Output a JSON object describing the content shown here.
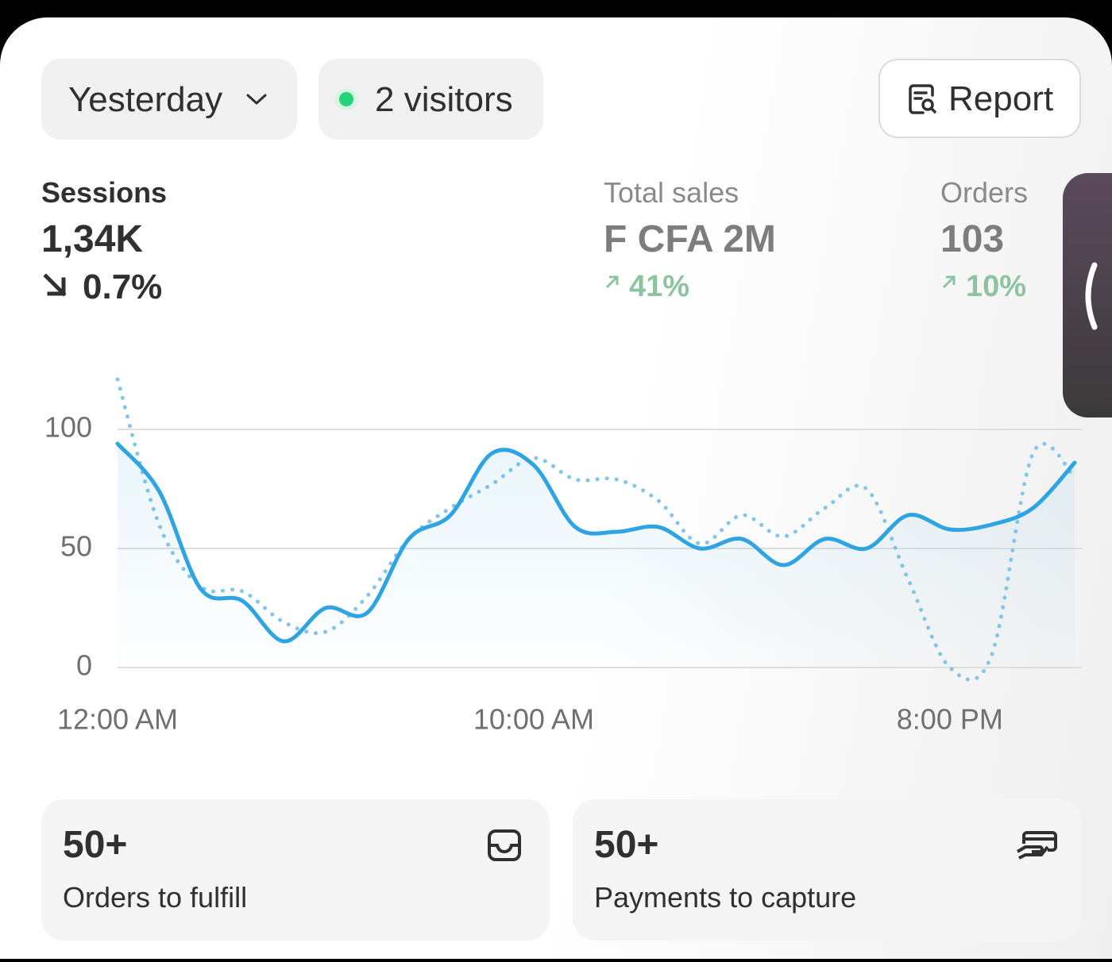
{
  "header": {
    "period": "Yesterday",
    "visitors": "2 visitors",
    "report": "Report"
  },
  "metrics": [
    {
      "label": "Sessions",
      "value": "1,34K",
      "change": "0.7%"
    },
    {
      "label": "Total sales",
      "value": "F CFA 2M",
      "change": "41%"
    },
    {
      "label": "Orders",
      "value": "103",
      "change": "10%"
    }
  ],
  "chart_data": {
    "type": "line",
    "x": [
      0,
      1,
      2,
      3,
      4,
      5,
      6,
      7,
      8,
      9,
      10,
      11,
      12,
      13,
      14,
      15,
      16,
      17,
      18,
      19,
      20,
      21,
      22,
      23
    ],
    "xlim": [
      0,
      23
    ],
    "xticks": [
      {
        "value": 0,
        "label": "12:00 AM"
      },
      {
        "value": 10,
        "label": "10:00 AM"
      },
      {
        "value": 20,
        "label": "8:00 PM"
      }
    ],
    "ylim": [
      0,
      100
    ],
    "yticks": [
      0,
      50,
      100
    ],
    "grid": true,
    "series": [
      {
        "color": "#2ea4e2",
        "style": "solid",
        "fill": true,
        "values": [
          94,
          74,
          33,
          28,
          11,
          25,
          23,
          54,
          64,
          90,
          85,
          59,
          57,
          59,
          50,
          54,
          43,
          54,
          50,
          64,
          58,
          60,
          67,
          86
        ]
      },
      {
        "color": "#84c6ea",
        "style": "dotted",
        "values": [
          121,
          60,
          34,
          32,
          19,
          15,
          30,
          54,
          67,
          77,
          88,
          79,
          79,
          70,
          52,
          64,
          55,
          67,
          75,
          37,
          0,
          5,
          90,
          80
        ]
      }
    ]
  },
  "cards": [
    {
      "value": "50+",
      "label": "Orders to fulfill"
    },
    {
      "value": "50+",
      "label": "Payments to capture"
    }
  ]
}
